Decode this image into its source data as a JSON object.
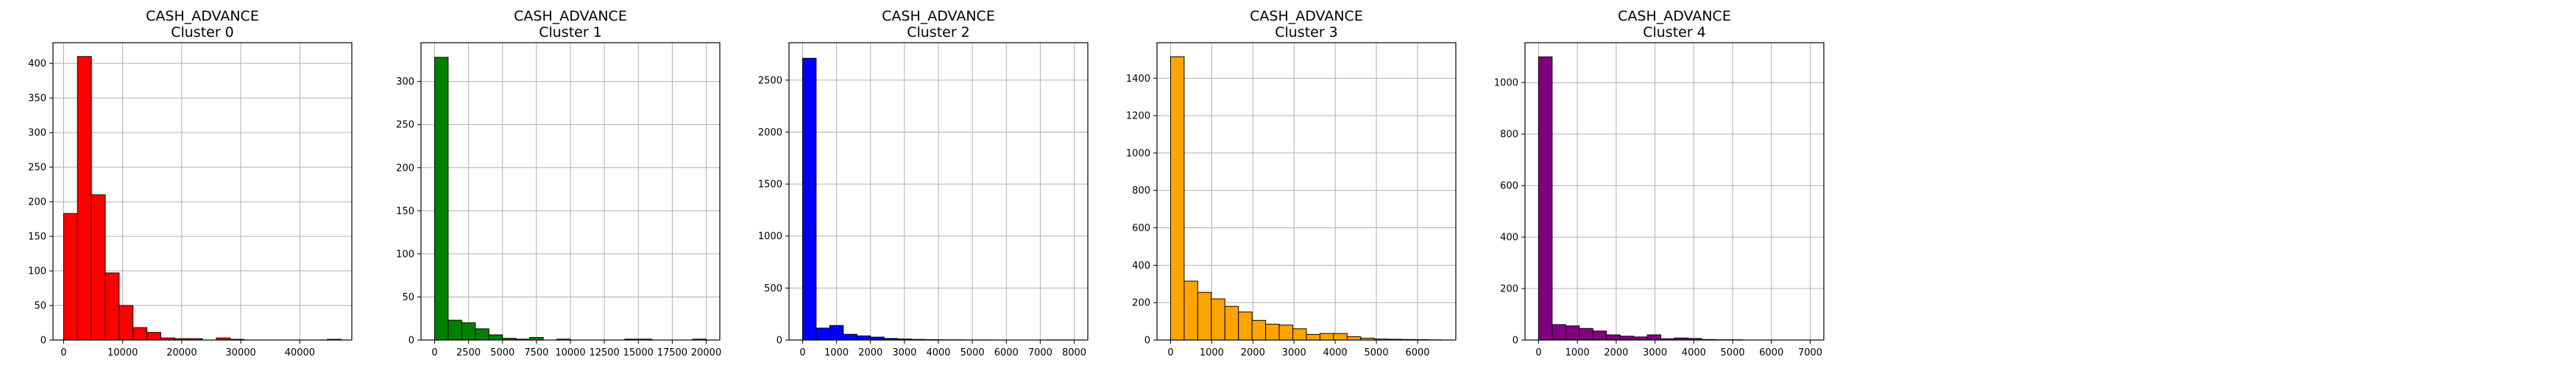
{
  "chart_data": [
    {
      "type": "bar",
      "title": "CASH_ADVANCE",
      "subtitle": "Cluster 0",
      "color": "#ff0000",
      "grid": true,
      "xlim": [
        -1800,
        48800
      ],
      "ylim": [
        0,
        430
      ],
      "xticks": [
        0,
        10000,
        20000,
        30000,
        40000
      ],
      "xtick_labels": [
        "0",
        "10000",
        "20000",
        "30000",
        "40000"
      ],
      "yticks": [
        0,
        50,
        100,
        150,
        200,
        250,
        300,
        350,
        400
      ],
      "ytick_labels": [
        "0",
        "50",
        "100",
        "150",
        "200",
        "250",
        "300",
        "350",
        "400"
      ],
      "bin_edges": [
        0,
        2350,
        4700,
        7050,
        9400,
        11750,
        14100,
        16450,
        18800,
        21150,
        23500,
        25850,
        28200,
        30550,
        32900,
        35250,
        37600,
        39950,
        42300,
        44650,
        47000
      ],
      "values": [
        183,
        410,
        210,
        97,
        50,
        18,
        11,
        3,
        2,
        2,
        0,
        3,
        1,
        0,
        0,
        0,
        0,
        0,
        0,
        1
      ]
    },
    {
      "type": "bar",
      "title": "CASH_ADVANCE",
      "subtitle": "Cluster 1",
      "color": "#008000",
      "grid": true,
      "xlim": [
        -1000,
        21000
      ],
      "ylim": [
        0,
        345
      ],
      "xticks": [
        0,
        2500,
        5000,
        7500,
        10000,
        12500,
        15000,
        17500,
        20000
      ],
      "xtick_labels": [
        "0",
        "2500",
        "5000",
        "7500",
        "10000",
        "12500",
        "15000",
        "17500",
        "20000"
      ],
      "yticks": [
        0,
        50,
        100,
        150,
        200,
        250,
        300
      ],
      "ytick_labels": [
        "0",
        "50",
        "100",
        "150",
        "200",
        "250",
        "300"
      ],
      "bin_edges": [
        0,
        1000,
        2000,
        3000,
        4000,
        5000,
        6000,
        7000,
        8000,
        9000,
        10000,
        11000,
        12000,
        13000,
        14000,
        15000,
        16000,
        17000,
        18000,
        19000,
        20000
      ],
      "values": [
        328,
        23,
        20,
        13,
        6,
        2,
        1,
        3,
        0,
        1,
        0,
        0,
        0,
        0,
        1,
        1,
        0,
        0,
        0,
        1
      ]
    },
    {
      "type": "bar",
      "title": "CASH_ADVANCE",
      "subtitle": "Cluster 2",
      "color": "#0000ff",
      "grid": true,
      "xlim": [
        -400,
        8400
      ],
      "ylim": [
        0,
        2860
      ],
      "xticks": [
        0,
        1000,
        2000,
        3000,
        4000,
        5000,
        6000,
        7000,
        8000
      ],
      "xtick_labels": [
        "0",
        "1000",
        "2000",
        "3000",
        "4000",
        "5000",
        "6000",
        "7000",
        "8000"
      ],
      "yticks": [
        0,
        500,
        1000,
        1500,
        2000,
        2500
      ],
      "ytick_labels": [
        "0",
        "500",
        "1000",
        "1500",
        "2000",
        "2500"
      ],
      "bin_edges": [
        0,
        400,
        800,
        1200,
        1600,
        2000,
        2400,
        2800,
        3200,
        3600,
        4000,
        4400,
        4800,
        5200,
        5600,
        6000,
        6400,
        6800,
        7200,
        7600,
        8000
      ],
      "values": [
        2710,
        115,
        140,
        55,
        40,
        28,
        15,
        10,
        6,
        4,
        2,
        2,
        1,
        1,
        0,
        0,
        0,
        0,
        1,
        1
      ]
    },
    {
      "type": "bar",
      "title": "CASH_ADVANCE",
      "subtitle": "Cluster 3",
      "color": "#ffa500",
      "grid": true,
      "xlim": [
        -330,
        6930
      ],
      "ylim": [
        0,
        1590
      ],
      "xticks": [
        0,
        1000,
        2000,
        3000,
        4000,
        5000,
        6000
      ],
      "xtick_labels": [
        "0",
        "1000",
        "2000",
        "3000",
        "4000",
        "5000",
        "6000"
      ],
      "yticks": [
        0,
        200,
        400,
        600,
        800,
        1000,
        1200,
        1400
      ],
      "ytick_labels": [
        "0",
        "200",
        "400",
        "600",
        "800",
        "1000",
        "1200",
        "1400"
      ],
      "bin_edges": [
        0,
        330,
        660,
        990,
        1320,
        1650,
        1980,
        2310,
        2640,
        2970,
        3300,
        3630,
        3960,
        4290,
        4620,
        4950,
        5280,
        5610,
        5940,
        6270,
        6600
      ],
      "values": [
        1515,
        315,
        255,
        220,
        180,
        150,
        105,
        85,
        80,
        60,
        30,
        35,
        35,
        18,
        10,
        5,
        4,
        3,
        2,
        1
      ]
    },
    {
      "type": "bar",
      "title": "CASH_ADVANCE",
      "subtitle": "Cluster 4",
      "color": "#800080",
      "grid": true,
      "xlim": [
        -350,
        7350
      ],
      "ylim": [
        0,
        1155
      ],
      "xticks": [
        0,
        1000,
        2000,
        3000,
        4000,
        5000,
        6000,
        7000
      ],
      "xtick_labels": [
        "0",
        "1000",
        "2000",
        "3000",
        "4000",
        "5000",
        "6000",
        "7000"
      ],
      "yticks": [
        0,
        200,
        400,
        600,
        800,
        1000
      ],
      "ytick_labels": [
        "0",
        "200",
        "400",
        "600",
        "800",
        "1000"
      ],
      "bin_edges": [
        0,
        350,
        700,
        1050,
        1400,
        1750,
        2100,
        2450,
        2800,
        3150,
        3500,
        3850,
        4200,
        4550,
        4900,
        5250,
        5600,
        5950,
        6300,
        6650,
        7000
      ],
      "values": [
        1100,
        60,
        55,
        45,
        35,
        20,
        15,
        12,
        20,
        5,
        8,
        6,
        2,
        1,
        1,
        0,
        0,
        0,
        0,
        0
      ]
    }
  ]
}
